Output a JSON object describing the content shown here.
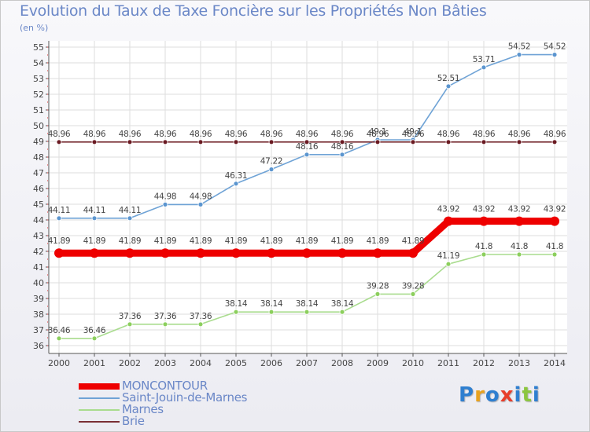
{
  "title": "Evolution du Taux de Taxe Foncière sur les Propriétés Non Bâties",
  "unit": "(en %)",
  "logo": {
    "text": "Proxiti",
    "colors": [
      "#2f7fd0",
      "#e8a21f",
      "#2f7fd0",
      "#e83d2a",
      "#2f7fd0",
      "#8cc63f",
      "#2f7fd0"
    ]
  },
  "colors": {
    "grid": "#dddddd",
    "axis": "#555555",
    "tick": "#e03030",
    "label": "#444444"
  },
  "chart_data": {
    "type": "line",
    "title": "Evolution du Taux de Taxe Foncière sur les Propriétés Non Bâties",
    "ylabel": "(en %)",
    "xlabel": "",
    "ylim": [
      36,
      55
    ],
    "yticks": [
      36,
      37,
      38,
      39,
      40,
      41,
      42,
      43,
      44,
      45,
      46,
      47,
      48,
      49,
      50,
      51,
      52,
      53,
      54,
      55
    ],
    "grid": true,
    "categories": [
      "2000",
      "2001",
      "2002",
      "2003",
      "2004",
      "2005",
      "2006",
      "2007",
      "2008",
      "2009",
      "2010",
      "2011",
      "2012",
      "2013",
      "2014"
    ],
    "series": [
      {
        "name": "Saint-Jouin-de-Marnes",
        "color": "#6fa3d6",
        "marker": "#5b95cf",
        "values": [
          44.11,
          44.11,
          44.11,
          44.98,
          44.98,
          46.31,
          47.22,
          48.16,
          48.16,
          49.1,
          49.1,
          52.51,
          53.71,
          54.52,
          54.52
        ],
        "labels": [
          "44.11",
          "44.11",
          "44.11",
          "44.98",
          "44.98",
          "46.31",
          "47.22",
          "48.16",
          "48.16",
          "49.1",
          "49.1",
          "52.51",
          "53.71",
          "54.52",
          "54.52"
        ]
      },
      {
        "name": "Marnes",
        "color": "#a9dc8e",
        "marker": "#8ccf5d",
        "values": [
          36.46,
          36.46,
          37.36,
          37.36,
          37.36,
          38.14,
          38.14,
          38.14,
          38.14,
          39.28,
          39.28,
          41.19,
          41.8,
          41.8,
          41.8
        ],
        "labels": [
          "36.46",
          "36.46",
          "37.36",
          "37.36",
          "37.36",
          "38.14",
          "38.14",
          "38.14",
          "38.14",
          "39.28",
          "39.28",
          "41.19",
          "41.8",
          "41.8",
          "41.8"
        ]
      },
      {
        "name": "Brie",
        "color": "#7a2f35",
        "marker": "#6a1a22",
        "values": [
          48.96,
          48.96,
          48.96,
          48.96,
          48.96,
          48.96,
          48.96,
          48.96,
          48.96,
          48.96,
          48.96,
          48.96,
          48.96,
          48.96,
          48.96
        ],
        "labels": [
          "48.96",
          "48.96",
          "48.96",
          "48.96",
          "48.96",
          "48.96",
          "48.96",
          "48.96",
          "48.96",
          "48.96",
          "48.96",
          "48.96",
          "48.96",
          "48.96",
          "48.96"
        ]
      },
      {
        "name": "MONCONTOUR",
        "color": "#ee0000",
        "marker": "#ee0000",
        "thick": true,
        "values": [
          41.89,
          41.89,
          41.89,
          41.89,
          41.89,
          41.89,
          41.89,
          41.89,
          41.89,
          41.89,
          41.89,
          43.92,
          43.92,
          43.92,
          43.92
        ],
        "labels": [
          "41.89",
          "41.89",
          "41.89",
          "41.89",
          "41.89",
          "41.89",
          "41.89",
          "41.89",
          "41.89",
          "41.89",
          "41.89",
          "43.92",
          "43.92",
          "43.92",
          "43.92"
        ]
      }
    ],
    "legend": [
      {
        "name": "MONCONTOUR",
        "color": "#ee0000",
        "thick": true
      },
      {
        "name": "Saint-Jouin-de-Marnes",
        "color": "#6fa3d6"
      },
      {
        "name": "Marnes",
        "color": "#a9dc8e"
      },
      {
        "name": "Brie",
        "color": "#7a2f35"
      }
    ]
  }
}
